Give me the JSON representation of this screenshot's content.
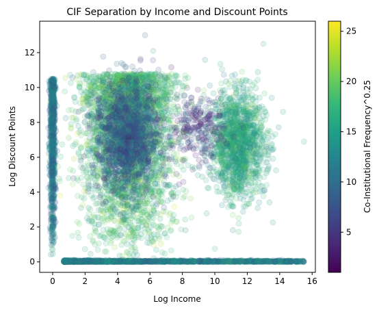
{
  "chart_data": {
    "type": "scatter",
    "title": "CIF Separation by Income and Discount Points",
    "xlabel": "Log Income",
    "ylabel": "Log Discount Points",
    "xlim": [
      -0.8,
      16.2
    ],
    "ylim": [
      -0.6,
      13.8
    ],
    "xticks": [
      0,
      2,
      4,
      6,
      8,
      10,
      12,
      14,
      16
    ],
    "yticks": [
      0,
      2,
      4,
      6,
      8,
      10,
      12
    ],
    "grid": false,
    "legend": "none",
    "marker_alpha": 0.15,
    "colorbar": {
      "label": "Co-Institutional Frequency^0.25",
      "range": [
        1,
        26
      ],
      "ticks": [
        5,
        10,
        15,
        20,
        25
      ],
      "colormap": "viridis",
      "stops": [
        "#440154",
        "#482878",
        "#3e4989",
        "#31688e",
        "#26828e",
        "#1f9e89",
        "#35b779",
        "#6ece58",
        "#b5de2b",
        "#fde725"
      ]
    },
    "clusters": [
      {
        "label": "x=0 column",
        "x_center": 0,
        "x_spread": 0.08,
        "y_range": [
          0,
          10.5
        ],
        "color_value": 11,
        "approx_points": 900
      },
      {
        "label": "y=0 row",
        "x_range": [
          0.7,
          15.5
        ],
        "y_center": 0,
        "y_spread": 0.04,
        "color_value": 12,
        "approx_points": 1600
      },
      {
        "label": "mid-income body",
        "x_center": 4.7,
        "y_center": 5.5,
        "x_spread": 1.4,
        "y_range": [
          0,
          10.8
        ],
        "color_value": 18,
        "approx_points": 3200
      },
      {
        "label": "mid-income dark core",
        "x_center": 4.6,
        "y_center": 7.2,
        "x_spread": 1.0,
        "y_spread": 1.6,
        "color_value": 8,
        "approx_points": 1500
      },
      {
        "label": "high-income cluster",
        "x_center": 11.4,
        "y_center": 6.8,
        "x_spread": 0.85,
        "y_spread": 1.5,
        "color_value": 16,
        "approx_points": 1500
      },
      {
        "label": "purple outliers",
        "x_center": 8.9,
        "y_center": 7.6,
        "x_spread": 0.8,
        "y_spread": 1.0,
        "color_value": 5,
        "approx_points": 250
      }
    ],
    "outliers": [
      {
        "x": 5.7,
        "y": 13.0,
        "color_value": 8
      },
      {
        "x": 13.0,
        "y": 12.5,
        "color_value": 16
      },
      {
        "x": 6.2,
        "y": 12.1,
        "color_value": 16
      },
      {
        "x": 15.5,
        "y": 6.9,
        "color_value": 16
      }
    ]
  }
}
